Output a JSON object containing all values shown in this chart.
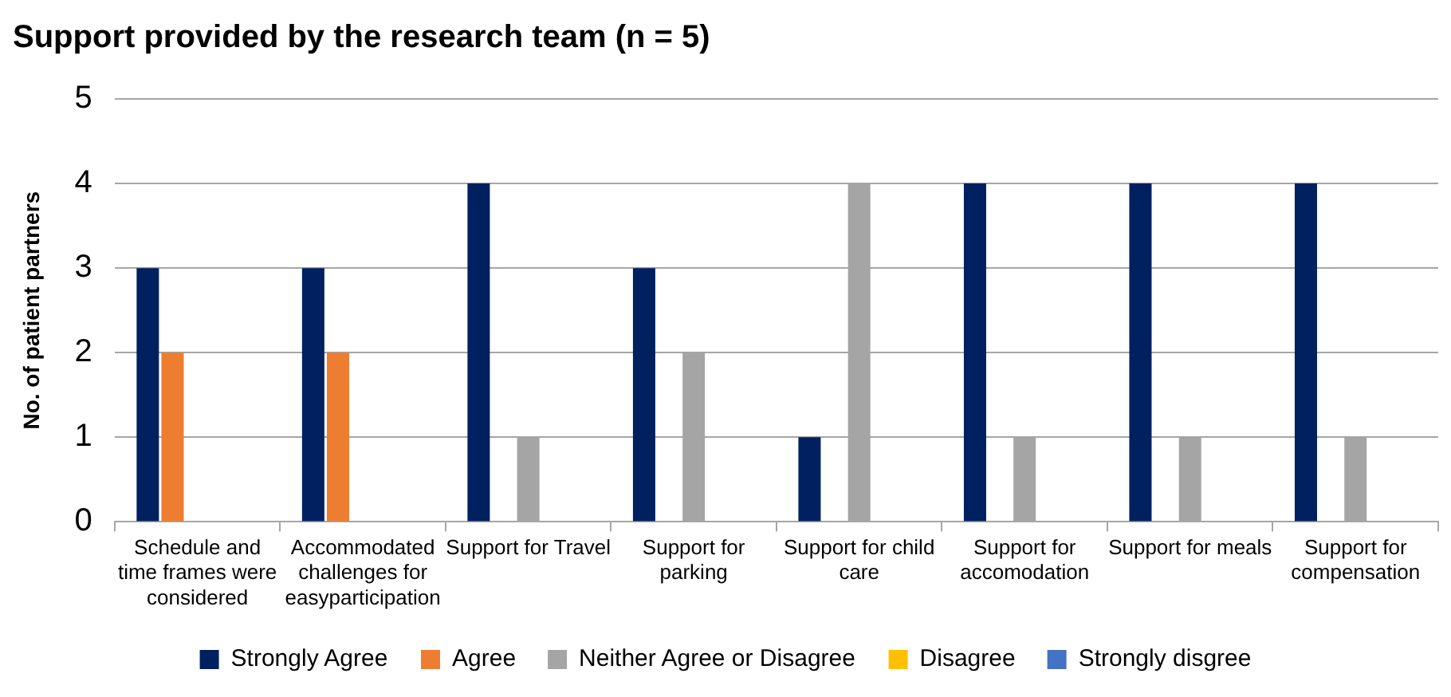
{
  "chart_data": {
    "type": "bar",
    "title": "Support provided by the research team (n = 5)",
    "ylabel": "No. of patient partners",
    "categories": [
      "Schedule and time frames were considered",
      "Accommodated challenges for easyparticipation",
      "Support for Travel",
      "Support for parking",
      "Support for child care",
      "Support for accomodation",
      "Support for meals",
      "Support for compensation"
    ],
    "series": [
      {
        "name": "Strongly Agree",
        "color": "#002060",
        "values": [
          3,
          3,
          4,
          3,
          1,
          4,
          4,
          4
        ]
      },
      {
        "name": "Agree",
        "color": "#ed7d31",
        "values": [
          2,
          2,
          0,
          0,
          0,
          0,
          0,
          0
        ]
      },
      {
        "name": "Neither Agree or Disagree",
        "color": "#a5a5a5",
        "values": [
          0,
          0,
          1,
          2,
          4,
          1,
          1,
          1
        ]
      },
      {
        "name": "Disagree",
        "color": "#ffc000",
        "values": [
          0,
          0,
          0,
          0,
          0,
          0,
          0,
          0
        ]
      },
      {
        "name": "Strongly disgree",
        "color": "#4472c4",
        "values": [
          0,
          0,
          0,
          0,
          0,
          0,
          0,
          0
        ]
      }
    ],
    "ylim": [
      0,
      5
    ],
    "yticks": [
      0,
      1,
      2,
      3,
      4,
      5
    ],
    "grid": "y",
    "legend": "bottom"
  }
}
